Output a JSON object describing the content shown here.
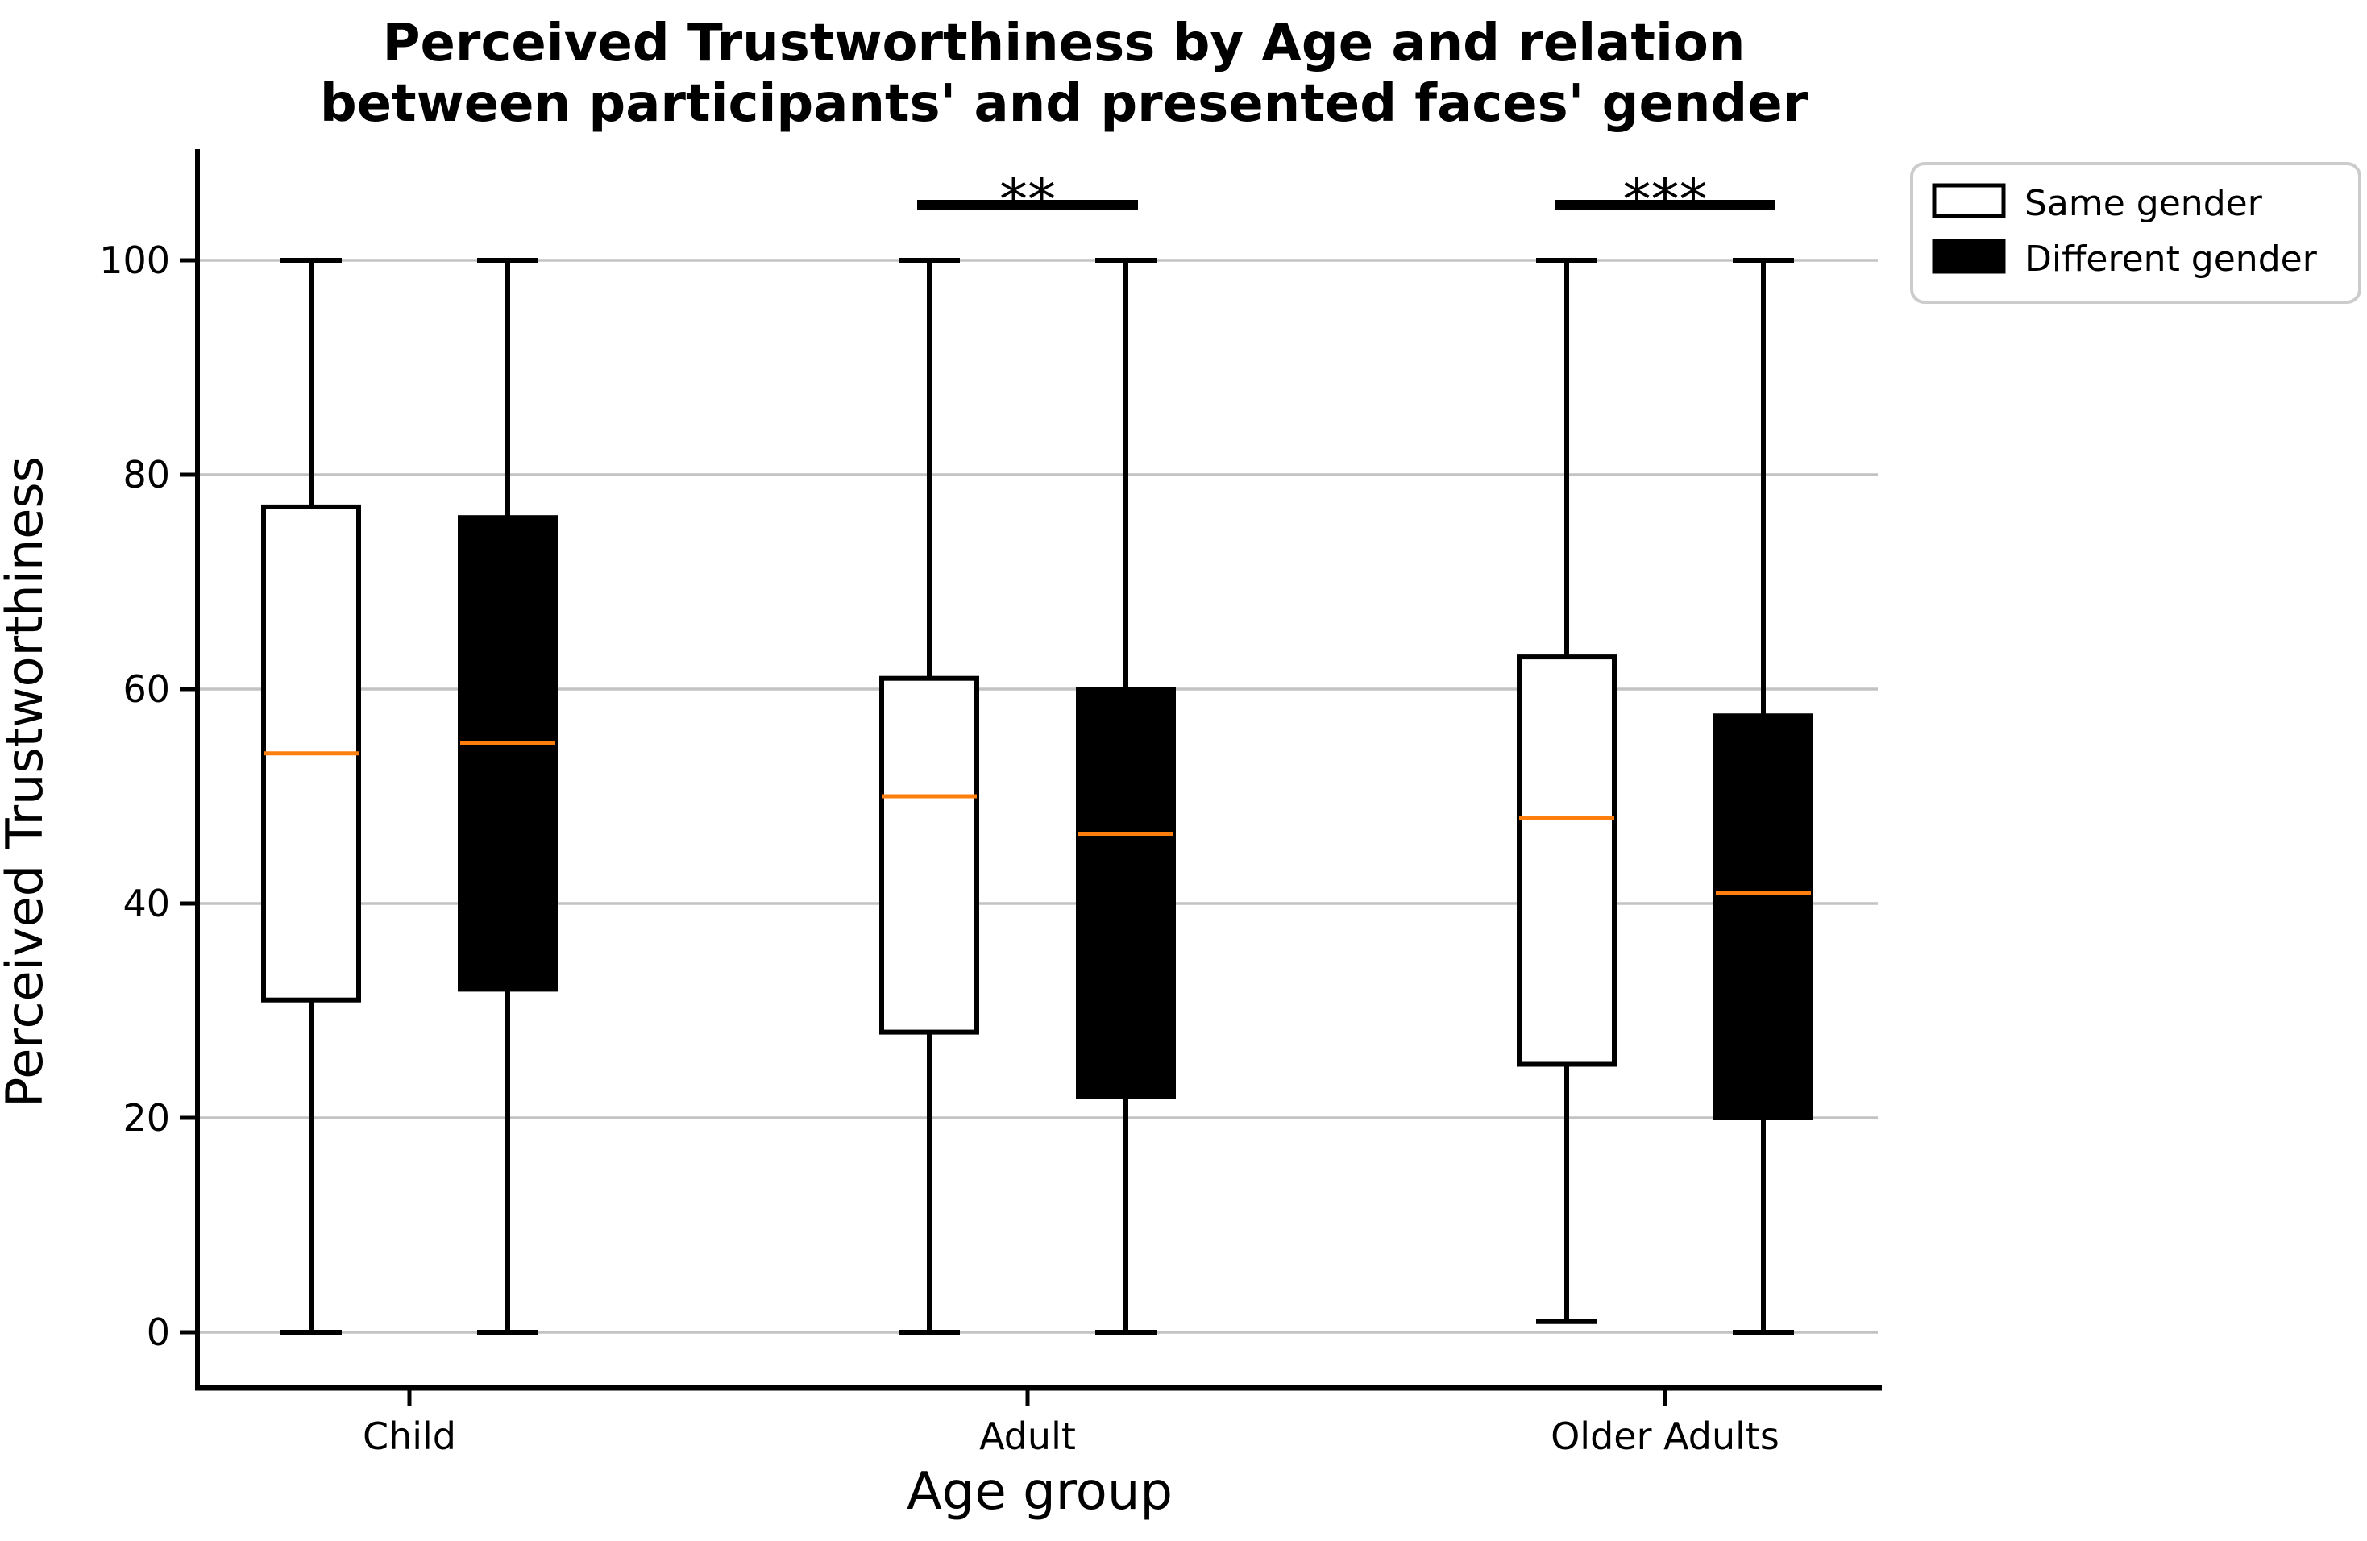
{
  "title": {
    "line1": "Perceived Trustworthiness by Age and relation",
    "line2": "between participants' and presented faces' gender"
  },
  "axes": {
    "x_label": "Age group",
    "y_label": "Perceived Trustworthiness",
    "y_ticks": [
      0,
      20,
      40,
      60,
      80,
      100
    ]
  },
  "legend": {
    "position": "upper-right-outside",
    "items": [
      "Same gender",
      "Different gender"
    ]
  },
  "colors": {
    "box_edge": "#000000",
    "same_gender_fill": "#ffffff",
    "different_gender_fill": "#000000",
    "median": "#ff7f0e",
    "grid": "#c3c3c3",
    "spine": "#000000",
    "legend_border": "#cccccc",
    "background": "#ffffff"
  },
  "chart_data": {
    "type": "boxplot",
    "title": "Perceived Trustworthiness by Age and relation between participants' and presented faces' gender",
    "xlabel": "Age group",
    "ylabel": "Perceived Trustworthiness",
    "categories": [
      "Child",
      "Adult",
      "Older Adults"
    ],
    "y_ticks": [
      0,
      20,
      40,
      60,
      80,
      100
    ],
    "ylim": [
      -5,
      110
    ],
    "grid": "horizontal",
    "legend_position": "upper right outside plot",
    "series": [
      {
        "name": "Same gender",
        "fill": "#ffffff",
        "boxes": [
          {
            "category": "Child",
            "min": 0,
            "q1": 31,
            "median": 54,
            "q3": 77,
            "max": 100
          },
          {
            "category": "Adult",
            "min": 0,
            "q1": 28,
            "median": 50,
            "q3": 61,
            "max": 100
          },
          {
            "category": "Older Adults",
            "min": 1,
            "q1": 25,
            "median": 48,
            "q3": 63,
            "max": 100
          }
        ]
      },
      {
        "name": "Different gender",
        "fill": "#000000",
        "boxes": [
          {
            "category": "Child",
            "min": 0,
            "q1": 32,
            "median": 55,
            "q3": 76,
            "max": 100
          },
          {
            "category": "Adult",
            "min": 0,
            "q1": 22,
            "median": 46.5,
            "q3": 60,
            "max": 100
          },
          {
            "category": "Older Adults",
            "min": 0,
            "q1": 20,
            "median": 41,
            "q3": 57.5,
            "max": 100
          }
        ]
      }
    ],
    "significance": [
      {
        "category": "Adult",
        "label": "**"
      },
      {
        "category": "Older Adults",
        "label": "***"
      }
    ],
    "median_color": "#ff7f0e"
  }
}
